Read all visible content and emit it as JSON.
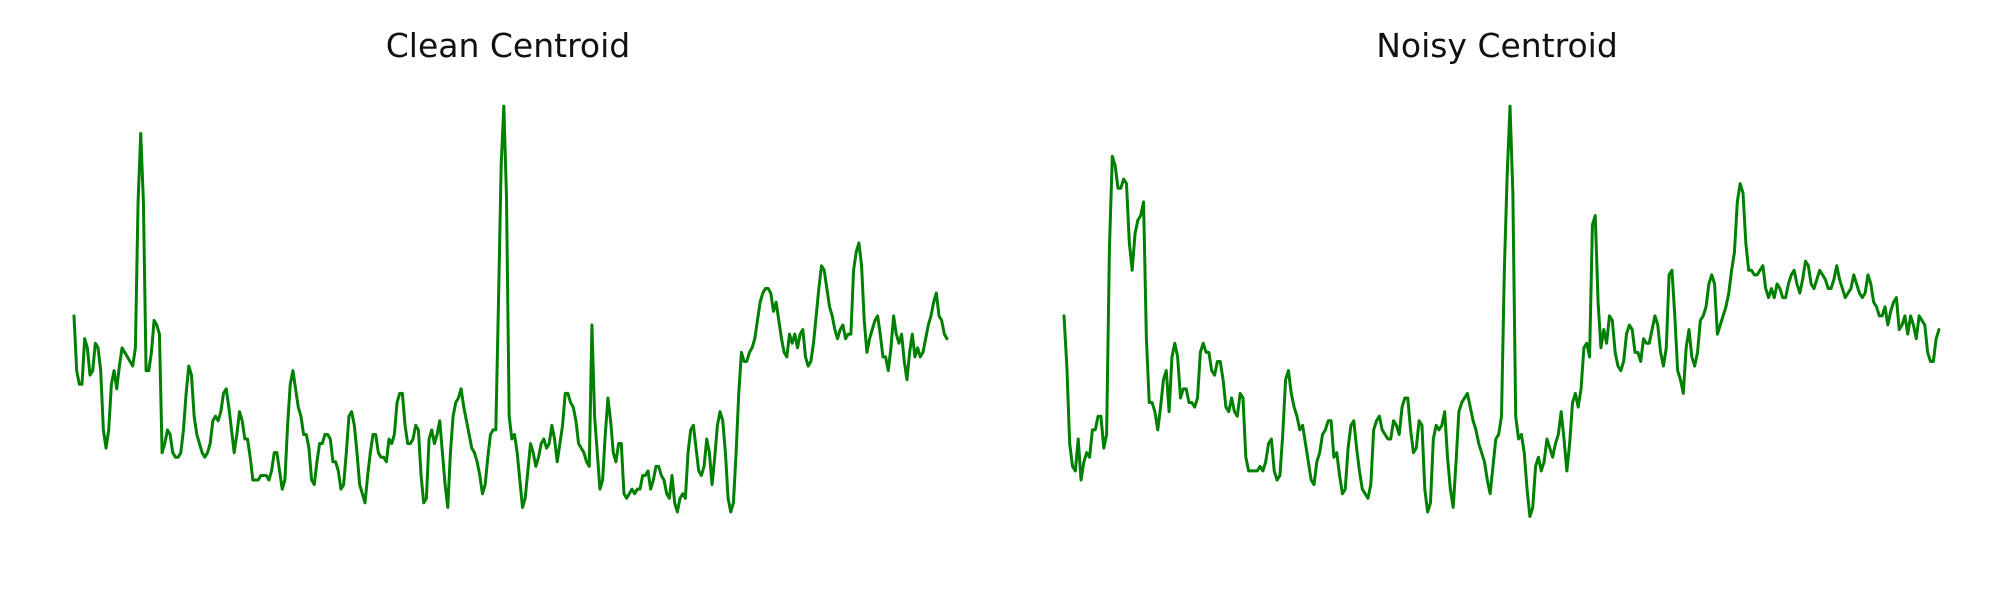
{
  "chart_data": [
    {
      "type": "line",
      "title": "Clean Centroid",
      "xlabel": "",
      "ylabel": "",
      "axes_visible": false,
      "grid": false,
      "series": [
        {
          "color": "#008000",
          "values": [
            0.52,
            0.4,
            0.37,
            0.37,
            0.47,
            0.45,
            0.39,
            0.4,
            0.46,
            0.45,
            0.4,
            0.27,
            0.23,
            0.27,
            0.37,
            0.4,
            0.36,
            0.41,
            0.45,
            0.44,
            0.43,
            0.42,
            0.41,
            0.45,
            0.77,
            0.92,
            0.77,
            0.4,
            0.4,
            0.44,
            0.51,
            0.5,
            0.48,
            0.22,
            0.24,
            0.27,
            0.26,
            0.22,
            0.21,
            0.21,
            0.22,
            0.27,
            0.35,
            0.41,
            0.39,
            0.3,
            0.26,
            0.24,
            0.22,
            0.21,
            0.22,
            0.24,
            0.29,
            0.3,
            0.29,
            0.31,
            0.35,
            0.36,
            0.32,
            0.27,
            0.22,
            0.26,
            0.31,
            0.29,
            0.25,
            0.25,
            0.21,
            0.16,
            0.16,
            0.16,
            0.17,
            0.17,
            0.17,
            0.16,
            0.18,
            0.22,
            0.22,
            0.18,
            0.14,
            0.16,
            0.28,
            0.37,
            0.4,
            0.36,
            0.32,
            0.3,
            0.26,
            0.26,
            0.23,
            0.16,
            0.15,
            0.2,
            0.24,
            0.24,
            0.26,
            0.26,
            0.25,
            0.2,
            0.2,
            0.18,
            0.14,
            0.15,
            0.22,
            0.3,
            0.31,
            0.28,
            0.22,
            0.15,
            0.13,
            0.11,
            0.17,
            0.22,
            0.26,
            0.26,
            0.22,
            0.21,
            0.21,
            0.2,
            0.25,
            0.24,
            0.26,
            0.33,
            0.35,
            0.35,
            0.28,
            0.24,
            0.24,
            0.25,
            0.28,
            0.27,
            0.17,
            0.11,
            0.12,
            0.25,
            0.27,
            0.24,
            0.26,
            0.29,
            0.22,
            0.15,
            0.1,
            0.22,
            0.3,
            0.33,
            0.34,
            0.36,
            0.32,
            0.29,
            0.26,
            0.23,
            0.22,
            0.2,
            0.17,
            0.13,
            0.15,
            0.21,
            0.26,
            0.27,
            0.27,
            0.55,
            0.85,
            0.98,
            0.78,
            0.3,
            0.25,
            0.26,
            0.22,
            0.16,
            0.1,
            0.12,
            0.18,
            0.24,
            0.22,
            0.19,
            0.21,
            0.24,
            0.25,
            0.23,
            0.24,
            0.28,
            0.25,
            0.2,
            0.24,
            0.28,
            0.35,
            0.35,
            0.33,
            0.32,
            0.29,
            0.24,
            0.23,
            0.22,
            0.2,
            0.19,
            0.5,
            0.3,
            0.22,
            0.14,
            0.16,
            0.26,
            0.34,
            0.29,
            0.22,
            0.2,
            0.24,
            0.24,
            0.13,
            0.12,
            0.13,
            0.14,
            0.13,
            0.14,
            0.14,
            0.17,
            0.17,
            0.18,
            0.14,
            0.16,
            0.19,
            0.19,
            0.17,
            0.16,
            0.13,
            0.12,
            0.17,
            0.11,
            0.09,
            0.12,
            0.13,
            0.12,
            0.22,
            0.27,
            0.28,
            0.23,
            0.18,
            0.17,
            0.19,
            0.25,
            0.22,
            0.15,
            0.21,
            0.28,
            0.31,
            0.29,
            0.22,
            0.12,
            0.09,
            0.11,
            0.22,
            0.35,
            0.44,
            0.42,
            0.42,
            0.44,
            0.45,
            0.47,
            0.51,
            0.55,
            0.57,
            0.58,
            0.58,
            0.57,
            0.53,
            0.55,
            0.51,
            0.47,
            0.44,
            0.43,
            0.48,
            0.46,
            0.48,
            0.45,
            0.48,
            0.49,
            0.43,
            0.41,
            0.42,
            0.46,
            0.52,
            0.58,
            0.63,
            0.62,
            0.58,
            0.54,
            0.52,
            0.49,
            0.47,
            0.49,
            0.5,
            0.47,
            0.48,
            0.48,
            0.62,
            0.66,
            0.68,
            0.63,
            0.51,
            0.44,
            0.47,
            0.49,
            0.51,
            0.52,
            0.48,
            0.43,
            0.43,
            0.4,
            0.45,
            0.52,
            0.48,
            0.46,
            0.48,
            0.42,
            0.38,
            0.44,
            0.48,
            0.43,
            0.45,
            0.43,
            0.44,
            0.47,
            0.5,
            0.52,
            0.55,
            0.57,
            0.52,
            0.51,
            0.48,
            0.47
          ],
          "style": "solid"
        }
      ]
    },
    {
      "type": "line",
      "title": "Noisy Centroid",
      "xlabel": "",
      "ylabel": "",
      "axes_visible": false,
      "grid": false,
      "series": [
        {
          "color": "#008000",
          "values": [
            0.52,
            0.41,
            0.24,
            0.19,
            0.18,
            0.25,
            0.16,
            0.2,
            0.22,
            0.21,
            0.27,
            0.27,
            0.3,
            0.3,
            0.23,
            0.26,
            0.67,
            0.87,
            0.85,
            0.8,
            0.8,
            0.82,
            0.81,
            0.68,
            0.62,
            0.7,
            0.73,
            0.74,
            0.77,
            0.47,
            0.33,
            0.33,
            0.31,
            0.27,
            0.32,
            0.38,
            0.4,
            0.31,
            0.43,
            0.46,
            0.43,
            0.34,
            0.36,
            0.36,
            0.33,
            0.33,
            0.32,
            0.34,
            0.44,
            0.46,
            0.44,
            0.44,
            0.4,
            0.39,
            0.42,
            0.42,
            0.38,
            0.32,
            0.31,
            0.34,
            0.31,
            0.3,
            0.35,
            0.34,
            0.21,
            0.18,
            0.18,
            0.18,
            0.18,
            0.19,
            0.18,
            0.2,
            0.24,
            0.25,
            0.18,
            0.16,
            0.17,
            0.26,
            0.38,
            0.4,
            0.35,
            0.32,
            0.3,
            0.27,
            0.28,
            0.24,
            0.2,
            0.16,
            0.15,
            0.2,
            0.22,
            0.26,
            0.27,
            0.29,
            0.29,
            0.21,
            0.22,
            0.17,
            0.13,
            0.14,
            0.23,
            0.28,
            0.29,
            0.23,
            0.18,
            0.14,
            0.13,
            0.12,
            0.15,
            0.27,
            0.29,
            0.3,
            0.27,
            0.26,
            0.25,
            0.25,
            0.29,
            0.28,
            0.26,
            0.32,
            0.34,
            0.34,
            0.27,
            0.22,
            0.23,
            0.29,
            0.28,
            0.14,
            0.09,
            0.11,
            0.25,
            0.28,
            0.27,
            0.28,
            0.31,
            0.21,
            0.14,
            0.1,
            0.2,
            0.31,
            0.33,
            0.34,
            0.35,
            0.32,
            0.29,
            0.27,
            0.24,
            0.22,
            0.2,
            0.16,
            0.13,
            0.19,
            0.25,
            0.26,
            0.3,
            0.62,
            0.83,
            0.98,
            0.79,
            0.3,
            0.25,
            0.26,
            0.22,
            0.14,
            0.08,
            0.1,
            0.19,
            0.21,
            0.18,
            0.2,
            0.25,
            0.23,
            0.21,
            0.24,
            0.26,
            0.31,
            0.25,
            0.18,
            0.24,
            0.33,
            0.35,
            0.32,
            0.36,
            0.45,
            0.46,
            0.43,
            0.72,
            0.74,
            0.55,
            0.45,
            0.49,
            0.46,
            0.52,
            0.51,
            0.44,
            0.41,
            0.4,
            0.42,
            0.48,
            0.5,
            0.49,
            0.44,
            0.44,
            0.42,
            0.47,
            0.46,
            0.46,
            0.49,
            0.52,
            0.5,
            0.44,
            0.41,
            0.45,
            0.61,
            0.62,
            0.52,
            0.4,
            0.38,
            0.35,
            0.45,
            0.49,
            0.43,
            0.41,
            0.44,
            0.51,
            0.52,
            0.54,
            0.59,
            0.61,
            0.59,
            0.48,
            0.5,
            0.52,
            0.54,
            0.57,
            0.62,
            0.66,
            0.77,
            0.81,
            0.79,
            0.68,
            0.62,
            0.62,
            0.61,
            0.61,
            0.62,
            0.63,
            0.58,
            0.56,
            0.58,
            0.56,
            0.59,
            0.58,
            0.56,
            0.56,
            0.59,
            0.61,
            0.62,
            0.59,
            0.57,
            0.6,
            0.64,
            0.63,
            0.59,
            0.58,
            0.6,
            0.62,
            0.61,
            0.6,
            0.58,
            0.58,
            0.6,
            0.63,
            0.6,
            0.58,
            0.56,
            0.57,
            0.58,
            0.61,
            0.59,
            0.57,
            0.56,
            0.57,
            0.61,
            0.59,
            0.55,
            0.54,
            0.52,
            0.52,
            0.54,
            0.5,
            0.53,
            0.55,
            0.56,
            0.49,
            0.5,
            0.52,
            0.48,
            0.52,
            0.5,
            0.47,
            0.52,
            0.51,
            0.5,
            0.44,
            0.42,
            0.42,
            0.47,
            0.49
          ]
        }
      ]
    }
  ]
}
